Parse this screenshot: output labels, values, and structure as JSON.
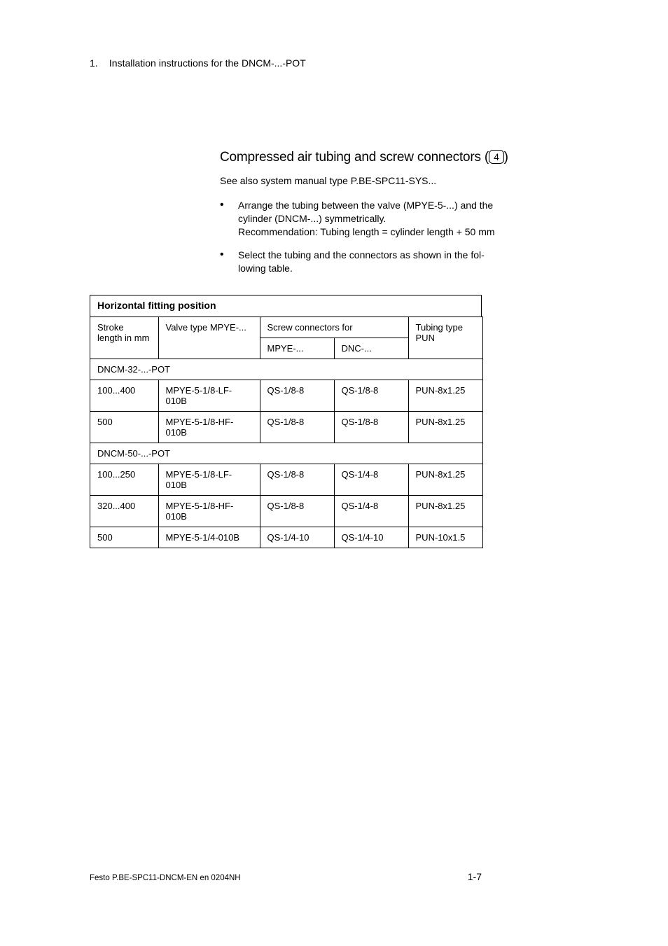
{
  "header": {
    "chapter_number": "1.",
    "chapter_title": "Installation instructions for the DNCM-...-POT"
  },
  "section": {
    "heading_text": "Compressed air tubing and screw connectors",
    "callout_number": "4",
    "see_also": "See also system manual type P.BE-SPC11-SYS...",
    "bullets": [
      {
        "line1": "Arrange the tubing between the valve (MPYE-5-...) and the",
        "line2": "cylinder (DNCM-...) symmetrically.",
        "line3": "Recommendation: Tubing length = cylinder length + 50 mm"
      },
      {
        "line1": "Select the tubing and the connectors as shown in the fol-",
        "line2": "lowing table."
      }
    ]
  },
  "table": {
    "title": "Horizontal fitting position",
    "head": {
      "col0": "Stroke length in mm",
      "col1": "Valve type MPYE-...",
      "col2span": "Screw connectors for",
      "col4": "Tubing type PUN",
      "sub2": "MPYE-...",
      "sub3": "DNC-..."
    },
    "group1": "DNCM-32-...-POT",
    "rows1": [
      [
        "100...400",
        "MPYE-5-1/8-LF-010B",
        "QS-1/8-8",
        "QS-1/8-8",
        "PUN-8x1.25"
      ],
      [
        "500",
        "MPYE-5-1/8-HF-010B",
        "QS-1/8-8",
        "QS-1/8-8",
        "PUN-8x1.25"
      ]
    ],
    "group2": "DNCM-50-...-POT",
    "rows2": [
      [
        "100...250",
        "MPYE-5-1/8-LF-010B",
        "QS-1/8-8",
        "QS-1/4-8",
        "PUN-8x1.25"
      ],
      [
        "320...400",
        "MPYE-5-1/8-HF-010B",
        "QS-1/8-8",
        "QS-1/4-8",
        "PUN-8x1.25"
      ],
      [
        "500",
        "MPYE-5-1/4-010B",
        "QS-1/4-10",
        "QS-1/4-10",
        "PUN-10x1.5"
      ]
    ]
  },
  "footer": {
    "left": "Festo P.BE-SPC11-DNCM-EN  en 0204NH",
    "right": "1-7"
  },
  "colors": {
    "text": "#000000",
    "background": "#ffffff",
    "border": "#000000"
  },
  "fonts": {
    "body_size_pt": 10.5,
    "heading_size_pt": 14,
    "footer_size_pt": 8.5
  }
}
